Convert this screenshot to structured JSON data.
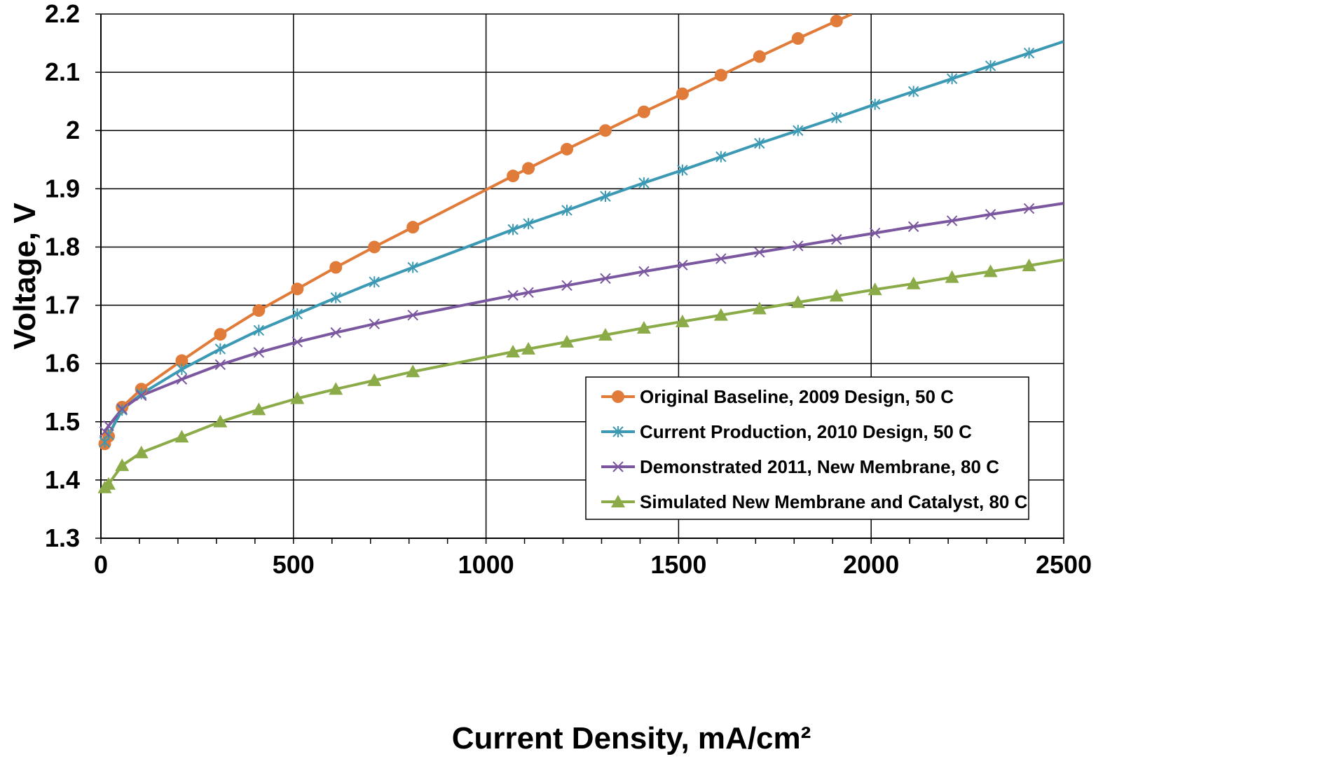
{
  "chart_data": {
    "type": "line",
    "xlabel": "Current Density, mA/cm²",
    "ylabel": "Voltage, V",
    "xlim": [
      0,
      2500
    ],
    "ylim": [
      1.3,
      2.2
    ],
    "x_ticks": [
      "0",
      "500",
      "1000",
      "1500",
      "2000",
      "2500"
    ],
    "y_ticks": [
      "1.3",
      "1.4",
      "1.5",
      "1.6",
      "1.7",
      "1.8",
      "1.9",
      "2",
      "2.1",
      "2.2"
    ],
    "grid": true,
    "legend_position": "bottom-right",
    "series": [
      {
        "name": "Original Baseline, 2009 Design, 50 C",
        "color": "#E07B39",
        "marker": "circle",
        "x": [
          10,
          20,
          55,
          105,
          210,
          310,
          410,
          510,
          610,
          710,
          810,
          1070,
          1110,
          1210,
          1310,
          1410,
          1510,
          1610,
          1710,
          1810,
          1910,
          1950
        ],
        "y": [
          1.462,
          1.475,
          1.525,
          1.556,
          1.605,
          1.65,
          1.691,
          1.728,
          1.765,
          1.8,
          1.834,
          1.922,
          1.935,
          1.968,
          2.0,
          2.032,
          2.063,
          2.095,
          2.127,
          2.158,
          2.188,
          2.2
        ],
        "marker_x": [
          10,
          20,
          55,
          105,
          210,
          310,
          410,
          510,
          610,
          710,
          810,
          1070,
          1110,
          1210,
          1310,
          1410,
          1510,
          1610,
          1710,
          1810,
          1910
        ]
      },
      {
        "name": "Current Production, 2010 Design, 50 C",
        "color": "#3C99B4",
        "marker": "asterisk",
        "x": [
          10,
          20,
          55,
          105,
          210,
          310,
          410,
          510,
          610,
          710,
          810,
          1070,
          1110,
          1210,
          1310,
          1410,
          1510,
          1610,
          1710,
          1810,
          1910,
          2010,
          2110,
          2210,
          2310,
          2410,
          2500
        ],
        "y": [
          1.465,
          1.478,
          1.52,
          1.548,
          1.59,
          1.625,
          1.657,
          1.685,
          1.713,
          1.74,
          1.765,
          1.83,
          1.84,
          1.863,
          1.887,
          1.91,
          1.932,
          1.955,
          1.978,
          2.0,
          2.022,
          2.045,
          2.067,
          2.089,
          2.111,
          2.133,
          2.153
        ],
        "marker_x": [
          10,
          20,
          55,
          105,
          210,
          310,
          410,
          510,
          610,
          710,
          810,
          1070,
          1110,
          1210,
          1310,
          1410,
          1510,
          1610,
          1710,
          1810,
          1910,
          2010,
          2110,
          2210,
          2310,
          2410
        ]
      },
      {
        "name": "Demonstrated 2011, New Membrane, 80 C",
        "color": "#7B57A0",
        "marker": "x",
        "x": [
          10,
          20,
          55,
          105,
          210,
          310,
          410,
          510,
          610,
          710,
          810,
          1070,
          1110,
          1210,
          1310,
          1410,
          1510,
          1610,
          1710,
          1810,
          1910,
          2010,
          2110,
          2210,
          2310,
          2410,
          2500
        ],
        "y": [
          1.483,
          1.493,
          1.522,
          1.545,
          1.573,
          1.598,
          1.619,
          1.637,
          1.653,
          1.668,
          1.683,
          1.717,
          1.722,
          1.734,
          1.746,
          1.758,
          1.769,
          1.78,
          1.791,
          1.802,
          1.813,
          1.824,
          1.835,
          1.845,
          1.856,
          1.866,
          1.875
        ],
        "marker_x": [
          10,
          20,
          55,
          105,
          210,
          310,
          410,
          510,
          610,
          710,
          810,
          1070,
          1110,
          1210,
          1310,
          1410,
          1510,
          1610,
          1710,
          1810,
          1910,
          2010,
          2110,
          2210,
          2310,
          2410
        ]
      },
      {
        "name": "Simulated New Membrane and Catalyst, 80 C",
        "color": "#8BAA48",
        "marker": "triangle",
        "x": [
          10,
          20,
          55,
          105,
          210,
          310,
          410,
          510,
          610,
          710,
          810,
          1070,
          1110,
          1210,
          1310,
          1410,
          1510,
          1610,
          1710,
          1810,
          1910,
          2010,
          2110,
          2210,
          2310,
          2410,
          2500
        ],
        "y": [
          1.387,
          1.393,
          1.425,
          1.447,
          1.474,
          1.5,
          1.521,
          1.54,
          1.556,
          1.571,
          1.586,
          1.62,
          1.625,
          1.637,
          1.649,
          1.661,
          1.672,
          1.683,
          1.694,
          1.705,
          1.716,
          1.727,
          1.737,
          1.748,
          1.758,
          1.768,
          1.778
        ],
        "marker_x": [
          10,
          20,
          55,
          105,
          210,
          310,
          410,
          510,
          610,
          710,
          810,
          1070,
          1110,
          1210,
          1310,
          1410,
          1510,
          1610,
          1710,
          1810,
          1910,
          2010,
          2110,
          2210,
          2310,
          2410
        ]
      }
    ]
  }
}
